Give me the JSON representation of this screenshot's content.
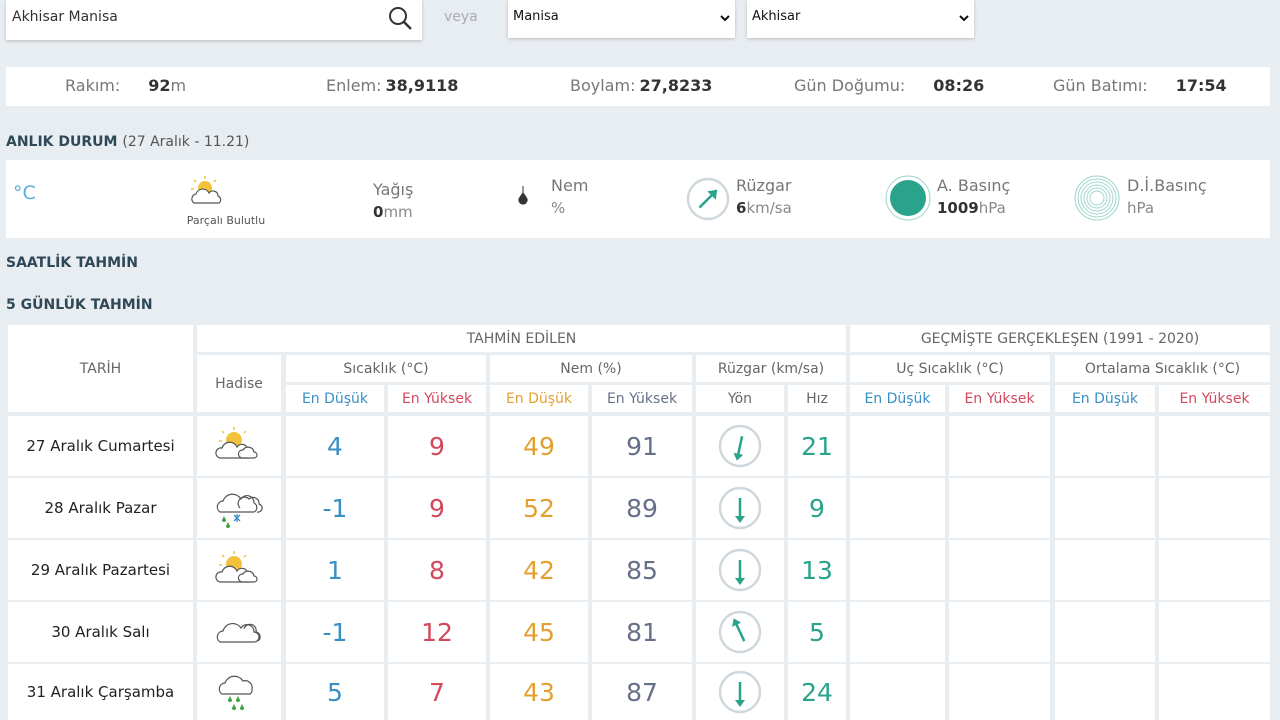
{
  "search": {
    "query": "Akhisar Manisa",
    "or": "veya",
    "province": "Manisa",
    "district": "Akhisar"
  },
  "location": [
    {
      "label": "Rakım:",
      "value": "92",
      "unit": "m"
    },
    {
      "label": "Enlem:",
      "value": "38,9118"
    },
    {
      "label": "Boylam:",
      "value": "27,8233"
    },
    {
      "label": "Gün Doğumu:",
      "value": "08:26"
    },
    {
      "label": "Gün Batımı:",
      "value": "17:54"
    }
  ],
  "current": {
    "title": "ANLIK DURUM",
    "time": "(27 Aralık - 11.21)",
    "temp_unit": "°C",
    "condition": "Parçalı Bulutlu",
    "rain": {
      "label": "Yağış",
      "value": "0",
      "unit": "mm"
    },
    "humidity": {
      "label": "Nem",
      "unit": "%"
    },
    "wind": {
      "label": "Rüzgar",
      "value": "6",
      "unit": "km/sa"
    },
    "pressure": {
      "label": "A. Basınç",
      "value": "1009",
      "unit": "hPa"
    },
    "sea_pressure": {
      "label": "D.İ.Basınç",
      "unit": "hPa"
    }
  },
  "hourly_title": "SAATLİK TAHMİN",
  "daily": {
    "title": "5 GÜNLÜK TAHMİN",
    "date_header": "TARİH",
    "event_header": "Hadise",
    "forecast_header": "TAHMİN EDİLEN",
    "past_header": "GEÇMİŞTE GERÇEKLEŞEN (1991 - 2020)",
    "temp_header": "Sıcaklık (°C)",
    "humidity_header": "Nem (%)",
    "wind_header": "Rüzgar (km/sa)",
    "extreme_header": "Uç Sıcaklık (°C)",
    "average_header": "Ortalama Sıcaklık (°C)",
    "sub_headers": [
      "En Düşük",
      "En Yüksek",
      "En Düşük",
      "En Yüksek",
      "Yön",
      "Hız",
      "En Düşük",
      "En Yüksek",
      "En Düşük",
      "En Yüksek"
    ],
    "rows": [
      {
        "date": "27 Aralık Cumartesi",
        "temp_min": 4,
        "temp_max": 9,
        "humidity_min": 49,
        "humidity_max": 91,
        "wind_speed": 21
      },
      {
        "date": "28 Aralık Pazar",
        "temp_min": -1,
        "temp_max": 9,
        "humidity_min": 52,
        "humidity_max": 89,
        "wind_speed": 9
      },
      {
        "date": "29 Aralık Pazartesi",
        "temp_min": 1,
        "temp_max": 8,
        "humidity_min": 42,
        "humidity_max": 85,
        "wind_speed": 13
      },
      {
        "date": "30 Aralık Salı",
        "temp_min": -1,
        "temp_max": 12,
        "humidity_min": 45,
        "humidity_max": 81,
        "wind_speed": 5
      },
      {
        "date": "31 Aralık Çarşamba",
        "temp_min": 5,
        "temp_max": 7,
        "humidity_min": 43,
        "humidity_max": 87,
        "wind_speed": 24
      }
    ]
  }
}
